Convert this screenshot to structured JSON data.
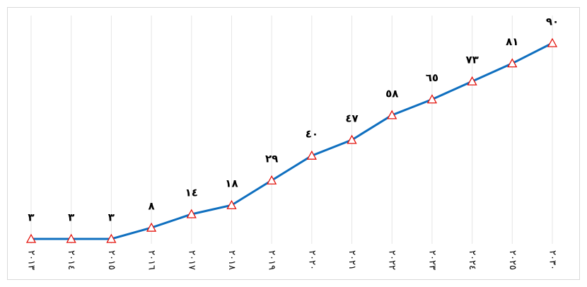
{
  "chart_data": {
    "type": "line",
    "categories": [
      "٢٠١٣",
      "٢٠١٤",
      "٢٠١٥",
      "٢٠١٦",
      "٢٠١٧",
      "٢٠١٨",
      "٢٠١٩",
      "٢٠٢٠",
      "٢٠٢١",
      "٢٠٢٢",
      "٢٠٢٣",
      "٢٠٢٤",
      "٢٠٢٥",
      "٢٠٣٠"
    ],
    "series": [
      {
        "color": "#0f6fbf",
        "marker_color": "#e3120b",
        "values": [
          3,
          3,
          3,
          8,
          14,
          18,
          29,
          40,
          47,
          58,
          65,
          73,
          81,
          90
        ],
        "value_labels": [
          "٣",
          "٣",
          "٣",
          "٨",
          "١٤",
          "١٨",
          "٢٩",
          "٤٠",
          "٤٧",
          "٥٨",
          "٦٥",
          "٧٣",
          "٨١",
          "٩٠"
        ]
      }
    ],
    "grid": true
  }
}
